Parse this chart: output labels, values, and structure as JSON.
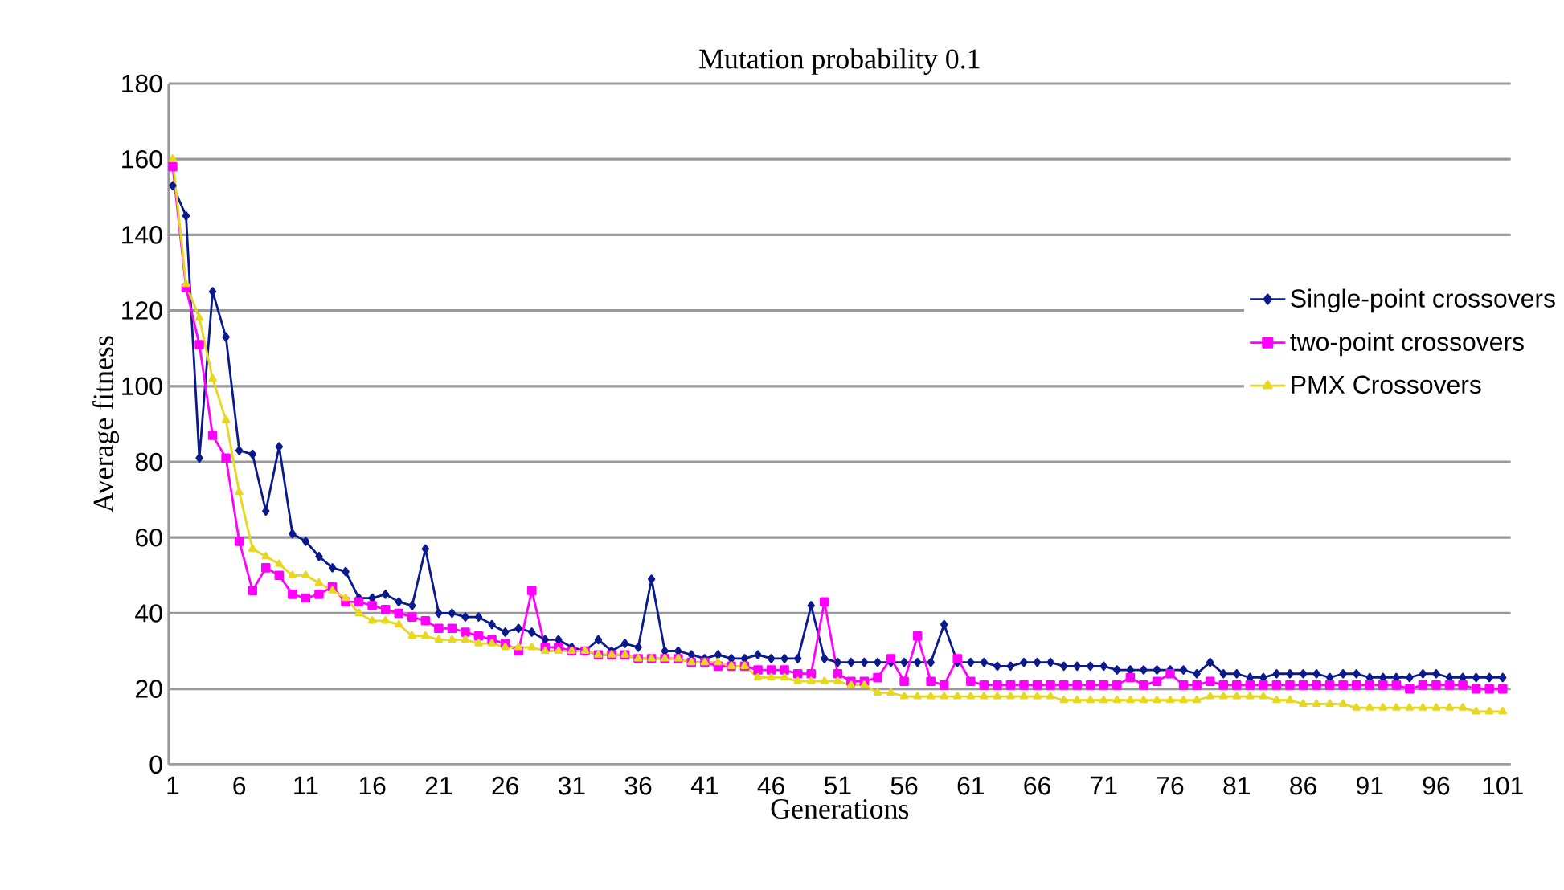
{
  "chart_data": {
    "type": "line",
    "title": "Mutation probability 0.1",
    "xlabel": "Generations",
    "ylabel": "Average fitness",
    "categories": [
      "1",
      null,
      null,
      null,
      null,
      "6",
      null,
      null,
      null,
      null,
      "11",
      null,
      null,
      null,
      null,
      "16",
      null,
      null,
      null,
      null,
      "21",
      null,
      null,
      null,
      null,
      "26",
      null,
      null,
      null,
      null,
      "31",
      null,
      null,
      null,
      null,
      "36",
      null,
      null,
      null,
      null,
      "41",
      null,
      null,
      null,
      null,
      "46",
      null,
      null,
      null,
      null,
      "51",
      null,
      null,
      null,
      null,
      "56",
      null,
      null,
      null,
      null,
      "61",
      null,
      null,
      null,
      null,
      "66",
      null,
      null,
      null,
      null,
      "71",
      null,
      null,
      null,
      null,
      "76",
      null,
      null,
      null,
      null,
      "81",
      null,
      null,
      null,
      null,
      "86",
      null,
      null,
      null,
      null,
      "91",
      null,
      null,
      null,
      null,
      "96",
      null,
      null,
      null,
      null,
      "101"
    ],
    "series": [
      {
        "name": "Single-point crossovers",
        "color": "#0a1a8c",
        "marker": "diamond",
        "values": [
          153,
          145,
          81,
          125,
          113,
          83,
          82,
          67,
          84,
          61,
          59,
          55,
          52,
          51,
          44,
          44,
          45,
          43,
          42,
          57,
          40,
          40,
          39,
          39,
          37,
          35,
          36,
          35,
          33,
          33,
          31,
          30,
          33,
          30,
          32,
          31,
          49,
          30,
          30,
          29,
          28,
          29,
          28,
          28,
          29,
          28,
          28,
          28,
          42,
          28,
          27,
          27,
          27,
          27,
          27,
          27,
          27,
          27,
          37,
          27,
          27,
          27,
          26,
          26,
          27,
          27,
          27,
          26,
          26,
          26,
          26,
          25,
          25,
          25,
          25,
          25,
          25,
          24,
          27,
          24,
          24,
          23,
          23,
          24,
          24,
          24,
          24,
          23,
          24,
          24,
          23,
          23,
          23,
          23,
          24,
          24,
          23,
          23,
          23,
          23,
          23
        ]
      },
      {
        "name": "two-point crossovers",
        "color": "#ff00ff",
        "marker": "square",
        "values": [
          158,
          126,
          111,
          87,
          81,
          59,
          46,
          52,
          50,
          45,
          44,
          45,
          47,
          43,
          43,
          42,
          41,
          40,
          39,
          38,
          36,
          36,
          35,
          34,
          33,
          32,
          30,
          46,
          31,
          31,
          30,
          30,
          29,
          29,
          29,
          28,
          28,
          28,
          28,
          27,
          27,
          26,
          26,
          26,
          25,
          25,
          25,
          24,
          24,
          43,
          24,
          22,
          22,
          23,
          28,
          22,
          34,
          22,
          21,
          28,
          22,
          21,
          21,
          21,
          21,
          21,
          21,
          21,
          21,
          21,
          21,
          21,
          23,
          21,
          22,
          24,
          21,
          21,
          22,
          21,
          21,
          21,
          21,
          21,
          21,
          21,
          21,
          21,
          21,
          21,
          21,
          21,
          21,
          20,
          21,
          21,
          21,
          21,
          20,
          20,
          20
        ]
      },
      {
        "name": "PMX Crossovers",
        "color": "#e6d81e",
        "marker": "triangle",
        "values": [
          160,
          127,
          118,
          102,
          91,
          72,
          57,
          55,
          53,
          50,
          50,
          48,
          46,
          44,
          40,
          38,
          38,
          37,
          34,
          34,
          33,
          33,
          33,
          32,
          32,
          31,
          31,
          31,
          30,
          30,
          30,
          30,
          29,
          29,
          29,
          28,
          28,
          28,
          28,
          27,
          27,
          27,
          26,
          26,
          23,
          23,
          23,
          22,
          22,
          22,
          22,
          21,
          21,
          19,
          19,
          18,
          18,
          18,
          18,
          18,
          18,
          18,
          18,
          18,
          18,
          18,
          18,
          17,
          17,
          17,
          17,
          17,
          17,
          17,
          17,
          17,
          17,
          17,
          18,
          18,
          18,
          18,
          18,
          17,
          17,
          16,
          16,
          16,
          16,
          15,
          15,
          15,
          15,
          15,
          15,
          15,
          15,
          15,
          14,
          14,
          14
        ]
      }
    ],
    "ylim": [
      0,
      180
    ],
    "yticks": [
      0,
      20,
      40,
      60,
      80,
      100,
      120,
      140,
      160,
      180
    ],
    "grid": "y",
    "legend": "right",
    "line_style": "solid"
  }
}
